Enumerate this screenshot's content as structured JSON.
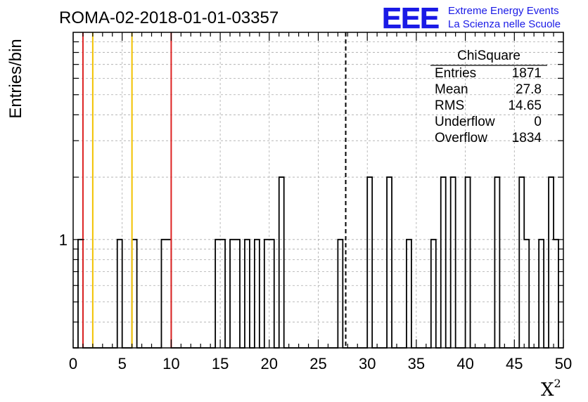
{
  "chart_data": {
    "type": "histogram",
    "title": "ROMA-02-2018-01-01-03357",
    "xlabel": "X",
    "xlabel_superscript": "2",
    "ylabel": "Entries/bin",
    "xlim": [
      0,
      50
    ],
    "ylim_log": [
      0.3,
      10
    ],
    "y_scale": "log",
    "x_ticks": [
      "0",
      "5",
      "10",
      "15",
      "20",
      "25",
      "30",
      "35",
      "40",
      "45",
      "50"
    ],
    "y_tick_labels": [
      "1"
    ],
    "grid": true,
    "bin_width": 0.5,
    "bins": [
      {
        "x0": 0.5,
        "y": 1
      },
      {
        "x0": 4.5,
        "y": 1
      },
      {
        "x0": 6.0,
        "y": 1
      },
      {
        "x0": 9.0,
        "y": 1
      },
      {
        "x0": 9.5,
        "y": 1
      },
      {
        "x0": 14.5,
        "y": 1
      },
      {
        "x0": 15.0,
        "y": 1
      },
      {
        "x0": 16.0,
        "y": 1
      },
      {
        "x0": 16.5,
        "y": 1
      },
      {
        "x0": 17.5,
        "y": 1
      },
      {
        "x0": 18.5,
        "y": 1
      },
      {
        "x0": 19.5,
        "y": 1
      },
      {
        "x0": 20.0,
        "y": 1
      },
      {
        "x0": 21.0,
        "y": 2
      },
      {
        "x0": 27.0,
        "y": 1
      },
      {
        "x0": 30.0,
        "y": 2
      },
      {
        "x0": 32.0,
        "y": 2
      },
      {
        "x0": 34.0,
        "y": 1
      },
      {
        "x0": 36.5,
        "y": 1
      },
      {
        "x0": 37.5,
        "y": 2
      },
      {
        "x0": 38.5,
        "y": 2
      },
      {
        "x0": 40.0,
        "y": 2
      },
      {
        "x0": 43.0,
        "y": 2
      },
      {
        "x0": 45.5,
        "y": 2
      },
      {
        "x0": 46.0,
        "y": 1
      },
      {
        "x0": 47.5,
        "y": 1
      },
      {
        "x0": 48.5,
        "y": 2
      },
      {
        "x0": 49.0,
        "y": 1
      }
    ],
    "vertical_lines": [
      {
        "x": 1.0,
        "color": "#dd2222"
      },
      {
        "x": 2.0,
        "color": "#f2c200"
      },
      {
        "x": 6.0,
        "color": "#f2c200"
      },
      {
        "x": 10.0,
        "color": "#dd2222"
      },
      {
        "x": 27.8,
        "color": "#000000",
        "dashed": true
      }
    ],
    "stats": {
      "title": "ChiSquare",
      "rows": [
        {
          "label": "Entries",
          "value": "1871"
        },
        {
          "label": "Mean",
          "value": "27.8"
        },
        {
          "label": "RMS",
          "value": "14.65"
        },
        {
          "label": "Underflow",
          "value": "0"
        },
        {
          "label": "Overflow",
          "value": "1834"
        }
      ]
    }
  },
  "logo": {
    "mark": "EEE",
    "line1": "Extreme Energy Events",
    "line2": "La Scienza nelle Scuole",
    "color": "#1a1ae6"
  }
}
